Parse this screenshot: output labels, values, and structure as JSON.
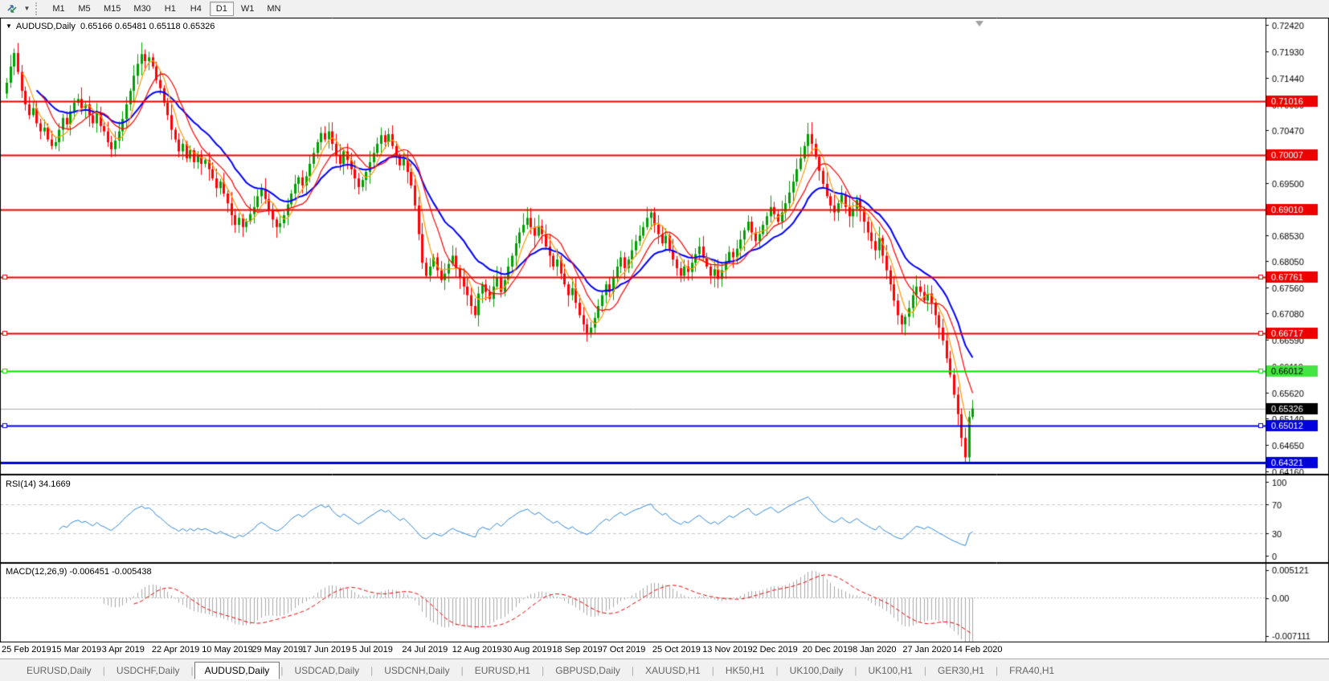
{
  "icons": {
    "collapse_triangle": "▼",
    "dropdown_caret": "▼",
    "tab_separator": "|"
  },
  "toolbar": {
    "timeframes": [
      "M1",
      "M5",
      "M15",
      "M30",
      "H1",
      "H4",
      "D1",
      "W1",
      "MN"
    ],
    "active_timeframe": "D1"
  },
  "chart": {
    "symbol_period": "AUDUSD,Daily",
    "ohlc_text": "0.65166 0.65481 0.65118 0.65326",
    "open": "0.65166",
    "high": "0.65481",
    "low": "0.65118",
    "close": "0.65326"
  },
  "price_axis": {
    "ticks": [
      0.7242,
      0.7193,
      0.7144,
      0.7095,
      0.7047,
      0.6999,
      0.695,
      0.6902,
      0.6853,
      0.6805,
      0.6756,
      0.6708,
      0.6659,
      0.6611,
      0.6562,
      0.6514,
      0.6465,
      0.6416
    ]
  },
  "hlines": [
    {
      "price": 0.71016,
      "color": "#ee0000",
      "width": 2,
      "label": "0.71016",
      "label_bg": "#ee0000",
      "label_fg": "#ffffff",
      "handles": false
    },
    {
      "price": 0.70007,
      "color": "#ee0000",
      "width": 2,
      "label": "0.70007",
      "label_bg": "#ee0000",
      "label_fg": "#ffffff",
      "handles": false
    },
    {
      "price": 0.6901,
      "color": "#ee0000",
      "width": 2,
      "label": "0.69010",
      "label_bg": "#ee0000",
      "label_fg": "#ffffff",
      "handles": false
    },
    {
      "price": 0.67761,
      "color": "#ee0000",
      "width": 2,
      "label": "0.67761",
      "label_bg": "#ee0000",
      "label_fg": "#ffffff",
      "handles": true
    },
    {
      "price": 0.66717,
      "color": "#ee0000",
      "width": 2,
      "label": "0.66717",
      "label_bg": "#ee0000",
      "label_fg": "#ffffff",
      "handles": true
    },
    {
      "price": 0.66012,
      "color": "#00e400",
      "width": 2,
      "label": "0.66012",
      "label_bg": "#44e444",
      "label_fg": "#000000",
      "handles": true
    },
    {
      "price": 0.65012,
      "color": "#0000dd",
      "width": 2,
      "label": "0.65012",
      "label_bg": "#0000dd",
      "label_fg": "#ffffff",
      "handles": true
    },
    {
      "price": 0.64321,
      "color": "#0000dd",
      "width": 3,
      "label": "0.64321",
      "label_bg": "#0000dd",
      "label_fg": "#ffffff",
      "handles": false
    }
  ],
  "current_price": {
    "value": 0.65326,
    "label": "0.65326",
    "label_bg": "#000000",
    "label_fg": "#ffffff",
    "line_color": "#aaaaaa"
  },
  "rsi": {
    "label": "RSI(14) 34.1669",
    "period": 14,
    "value": 34.1669,
    "axis_labels": [
      "100",
      "70",
      "30",
      "0"
    ],
    "levels": [
      70,
      30
    ],
    "range": [
      0,
      100
    ],
    "line_color": "#2e86d4"
  },
  "macd": {
    "label": "MACD(12,26,9) -0.006451 -0.005438",
    "params": [
      12,
      26,
      9
    ],
    "macd_value": -0.006451,
    "signal_value": -0.005438,
    "axis_labels": [
      "0.005121",
      "0.00",
      "-0.007111"
    ],
    "range": [
      -0.007111,
      0.005121
    ],
    "hist_color": "#a8a8a8",
    "signal_color": "#ee0000"
  },
  "dates": [
    "25 Feb 2019",
    "15 Mar 2019",
    "3 Apr 2019",
    "22 Apr 2019",
    "10 May 2019",
    "29 May 2019",
    "17 Jun 2019",
    "5 Jul 2019",
    "24 Jul 2019",
    "12 Aug 2019",
    "30 Aug 2019",
    "18 Sep 2019",
    "7 Oct 2019",
    "25 Oct 2019",
    "13 Nov 2019",
    "2 Dec 2019",
    "20 Dec 2019",
    "8 Jan 2020",
    "27 Jan 2020",
    "14 Feb 2020"
  ],
  "tabs": [
    {
      "label": "EURUSD,Daily",
      "active": false
    },
    {
      "label": "USDCHF,Daily",
      "active": false
    },
    {
      "label": "AUDUSD,Daily",
      "active": true
    },
    {
      "label": "USDCAD,Daily",
      "active": false
    },
    {
      "label": "USDCNH,Daily",
      "active": false
    },
    {
      "label": "EURUSD,H1",
      "active": false
    },
    {
      "label": "GBPUSD,Daily",
      "active": false
    },
    {
      "label": "XAUUSD,H1",
      "active": false
    },
    {
      "label": "HK50,H1",
      "active": false
    },
    {
      "label": "UK100,Daily",
      "active": false
    },
    {
      "label": "UK100,H1",
      "active": false
    },
    {
      "label": "GER30,H1",
      "active": false
    },
    {
      "label": "FRA40,H1",
      "active": false
    }
  ],
  "chart_data": {
    "type": "candlestick",
    "symbol": "AUDUSD",
    "timeframe": "Daily",
    "title": "AUDUSD,Daily",
    "y_axis_range": [
      0.6395,
      0.7262
    ],
    "up_color": "#00a000",
    "down_color": "#ff0000",
    "moving_averages": [
      {
        "name": "ma-fast",
        "period": 5,
        "color": "#ff9900"
      },
      {
        "name": "ma-mid",
        "period": 10,
        "color": "#ff0000"
      },
      {
        "name": "ma-slow",
        "period": 20,
        "color": "#0000ff",
        "type": "ema"
      }
    ],
    "last_candle": {
      "open": 0.65166,
      "high": 0.65481,
      "low": 0.65118,
      "close": 0.65326
    },
    "min_low": 0.64321,
    "closes": [
      0.7135,
      0.7165,
      0.719,
      0.7155,
      0.712,
      0.7095,
      0.7075,
      0.7088,
      0.706,
      0.7045,
      0.7052,
      0.703,
      0.7018,
      0.7025,
      0.7048,
      0.707,
      0.7058,
      0.7082,
      0.7098,
      0.7105,
      0.7088,
      0.7095,
      0.7075,
      0.706,
      0.708,
      0.7055,
      0.7045,
      0.7025,
      0.7012,
      0.7028,
      0.7045,
      0.7068,
      0.7095,
      0.712,
      0.7148,
      0.717,
      0.7188,
      0.7175,
      0.7182,
      0.7165,
      0.714,
      0.7125,
      0.7098,
      0.7075,
      0.7048,
      0.703,
      0.7008,
      0.7022,
      0.6995,
      0.701,
      0.6988,
      0.7002,
      0.6985,
      0.6992,
      0.6975,
      0.6958,
      0.694,
      0.6952,
      0.693,
      0.6912,
      0.689,
      0.6872,
      0.6885,
      0.6868,
      0.6878,
      0.6892,
      0.6905,
      0.6925,
      0.6938,
      0.692,
      0.69,
      0.6882,
      0.6868,
      0.6875,
      0.689,
      0.691,
      0.693,
      0.6948,
      0.696,
      0.6945,
      0.6962,
      0.6985,
      0.7005,
      0.7025,
      0.7042,
      0.703,
      0.7045,
      0.7022,
      0.7,
      0.6985,
      0.7008,
      0.6992,
      0.6975,
      0.6958,
      0.6942,
      0.6955,
      0.697,
      0.6988,
      0.7005,
      0.7022,
      0.7038,
      0.7025,
      0.704,
      0.7018,
      0.7,
      0.6982,
      0.6995,
      0.697,
      0.6945,
      0.6908,
      0.6855,
      0.6802,
      0.6778,
      0.6795,
      0.6812,
      0.6788,
      0.677,
      0.6782,
      0.68,
      0.6815,
      0.6792,
      0.6775,
      0.6758,
      0.6742,
      0.6722,
      0.6705,
      0.6745,
      0.6762,
      0.6748,
      0.6735,
      0.6758,
      0.6775,
      0.6748,
      0.677,
      0.6795,
      0.6815,
      0.6838,
      0.6858,
      0.6872,
      0.6885,
      0.6868,
      0.6852,
      0.687,
      0.6855,
      0.6832,
      0.6815,
      0.6795,
      0.6808,
      0.6782,
      0.6762,
      0.6742,
      0.6755,
      0.6728,
      0.6705,
      0.6688,
      0.6672,
      0.6682,
      0.67,
      0.6722,
      0.6742,
      0.6762,
      0.6748,
      0.6775,
      0.6795,
      0.6812,
      0.6792,
      0.6808,
      0.6825,
      0.6842,
      0.6852,
      0.6868,
      0.6885,
      0.6895,
      0.6872,
      0.6855,
      0.6838,
      0.6852,
      0.6825,
      0.6808,
      0.6792,
      0.6778,
      0.6795,
      0.6785,
      0.6802,
      0.6818,
      0.6832,
      0.6812,
      0.6795,
      0.6778,
      0.679,
      0.6772,
      0.6788,
      0.6805,
      0.6822,
      0.6812,
      0.6828,
      0.6845,
      0.6862,
      0.6878,
      0.6858,
      0.6842,
      0.6855,
      0.6872,
      0.6888,
      0.6905,
      0.6892,
      0.6878,
      0.6895,
      0.6912,
      0.6932,
      0.6952,
      0.6975,
      0.6995,
      0.7018,
      0.704,
      0.7022,
      0.6998,
      0.6972,
      0.6948,
      0.6925,
      0.6908,
      0.6895,
      0.6912,
      0.6928,
      0.6905,
      0.6888,
      0.6902,
      0.6918,
      0.6898,
      0.6878,
      0.6858,
      0.6842,
      0.6825,
      0.6848,
      0.6815,
      0.6788,
      0.6762,
      0.6732,
      0.6705,
      0.6688,
      0.6702,
      0.6718,
      0.6742,
      0.6758,
      0.6748,
      0.6732,
      0.6745,
      0.6728,
      0.6705,
      0.6682,
      0.6658,
      0.6625,
      0.6595,
      0.6558,
      0.6522,
      0.6478,
      0.6442,
      0.65166,
      0.65326
    ]
  }
}
